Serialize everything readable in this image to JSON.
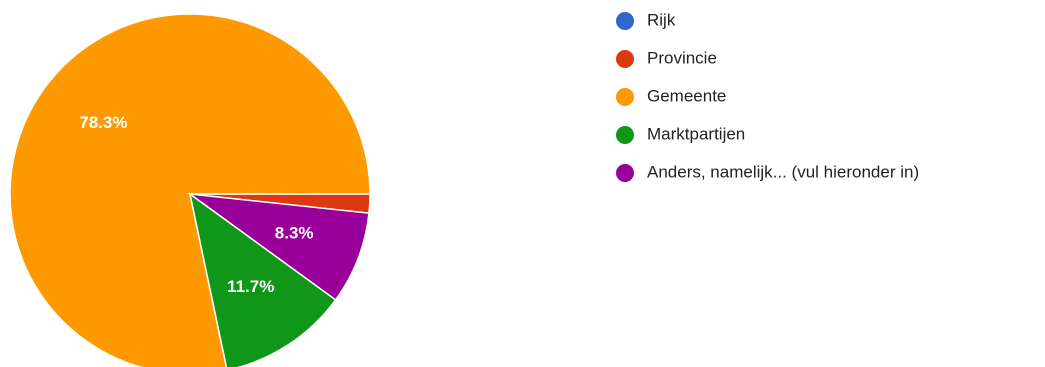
{
  "chart_data": {
    "type": "pie",
    "title": "",
    "legend_position": "right",
    "slices": [
      {
        "label": "Rijk",
        "value": 0,
        "display": "",
        "color": "#3366cc"
      },
      {
        "label": "Provincie",
        "value": 1.7,
        "display": "",
        "color": "#dc3912"
      },
      {
        "label": "Gemeente",
        "value": 78.3,
        "display": "78.3%",
        "color": "#ff9900"
      },
      {
        "label": "Marktpartijen",
        "value": 11.7,
        "display": "11.7%",
        "color": "#109618"
      },
      {
        "label": "Anders, namelijk... (vul hieronder in)",
        "value": 8.3,
        "display": "8.3%",
        "color": "#990099"
      }
    ]
  }
}
